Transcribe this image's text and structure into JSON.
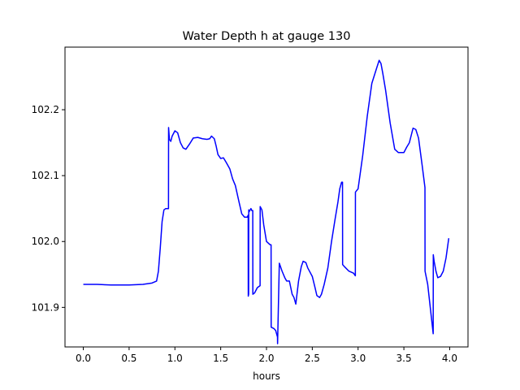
{
  "chart_data": {
    "type": "line",
    "title": "Water Depth h at gauge 130",
    "xlabel": "hours",
    "ylabel": "",
    "xlim": [
      -0.2,
      4.2
    ],
    "ylim": [
      101.84,
      102.295
    ],
    "xticks": [
      0.0,
      0.5,
      1.0,
      1.5,
      2.0,
      2.5,
      3.0,
      3.5,
      4.0
    ],
    "xtick_labels": [
      "0.0",
      "0.5",
      "1.0",
      "1.5",
      "2.0",
      "2.5",
      "3.0",
      "3.5",
      "4.0"
    ],
    "yticks": [
      101.9,
      102.0,
      102.1,
      102.2
    ],
    "ytick_labels": [
      "101.9",
      "102.0",
      "102.1",
      "102.2"
    ],
    "grid": false,
    "series": [
      {
        "color": "#0000ff",
        "x": [
          0.0,
          0.15,
          0.3,
          0.5,
          0.65,
          0.75,
          0.8,
          0.82,
          0.84,
          0.86,
          0.88,
          0.9,
          0.92,
          0.93,
          0.931,
          0.94,
          0.955,
          0.97,
          1.0,
          1.03,
          1.06,
          1.09,
          1.12,
          1.16,
          1.2,
          1.25,
          1.3,
          1.35,
          1.38,
          1.4,
          1.43,
          1.45,
          1.47,
          1.5,
          1.53,
          1.56,
          1.6,
          1.63,
          1.66,
          1.7,
          1.73,
          1.76,
          1.79,
          1.8,
          1.801,
          1.805,
          1.806,
          1.81,
          1.83,
          1.84,
          1.85,
          1.851,
          1.87,
          1.9,
          1.93,
          1.931,
          1.95,
          1.97,
          2.0,
          2.04,
          2.05,
          2.051,
          2.08,
          2.1,
          2.12,
          2.121,
          2.14,
          2.17,
          2.2,
          2.22,
          2.25,
          2.28,
          2.3,
          2.32,
          2.35,
          2.38,
          2.4,
          2.43,
          2.45,
          2.5,
          2.53,
          2.55,
          2.58,
          2.6,
          2.63,
          2.67,
          2.71,
          2.75,
          2.78,
          2.8,
          2.82,
          2.83,
          2.831,
          2.85,
          2.9,
          2.95,
          2.97,
          2.971,
          3.0,
          3.05,
          3.1,
          3.15,
          3.2,
          3.23,
          3.25,
          3.27,
          3.3,
          3.35,
          3.4,
          3.44,
          3.47,
          3.5,
          3.53,
          3.56,
          3.6,
          3.63,
          3.66,
          3.7,
          3.73,
          3.731,
          3.76,
          3.8,
          3.82,
          3.821,
          3.83,
          3.85,
          3.87,
          3.9,
          3.93,
          3.96,
          3.99
        ],
        "y": [
          101.935,
          101.935,
          101.934,
          101.934,
          101.935,
          101.937,
          101.94,
          101.955,
          101.99,
          102.03,
          102.048,
          102.05,
          102.05,
          102.05,
          102.173,
          102.155,
          102.152,
          102.16,
          102.168,
          102.165,
          102.15,
          102.142,
          102.14,
          102.148,
          102.157,
          102.158,
          102.156,
          102.155,
          102.156,
          102.16,
          102.156,
          102.145,
          102.132,
          102.126,
          102.127,
          102.12,
          102.11,
          102.095,
          102.085,
          102.06,
          102.042,
          102.037,
          102.037,
          102.04,
          101.917,
          101.92,
          102.048,
          102.045,
          102.05,
          102.047,
          102.047,
          101.92,
          101.922,
          101.93,
          101.933,
          102.053,
          102.048,
          102.025,
          102.0,
          101.995,
          101.995,
          101.87,
          101.868,
          101.865,
          101.855,
          101.845,
          101.967,
          101.955,
          101.945,
          101.94,
          101.94,
          101.92,
          101.915,
          101.905,
          101.94,
          101.962,
          101.97,
          101.968,
          101.96,
          101.947,
          101.93,
          101.918,
          101.915,
          101.92,
          101.935,
          101.96,
          102.0,
          102.035,
          102.06,
          102.08,
          102.09,
          102.09,
          101.965,
          101.962,
          101.955,
          101.952,
          101.948,
          102.075,
          102.08,
          102.13,
          102.19,
          102.24,
          102.262,
          102.275,
          102.27,
          102.255,
          102.23,
          102.18,
          102.14,
          102.135,
          102.135,
          102.135,
          102.143,
          102.15,
          102.172,
          102.17,
          102.157,
          102.115,
          102.082,
          101.955,
          101.935,
          101.885,
          101.86,
          101.98,
          101.97,
          101.955,
          101.945,
          101.947,
          101.955,
          101.975,
          102.005
        ]
      }
    ]
  }
}
